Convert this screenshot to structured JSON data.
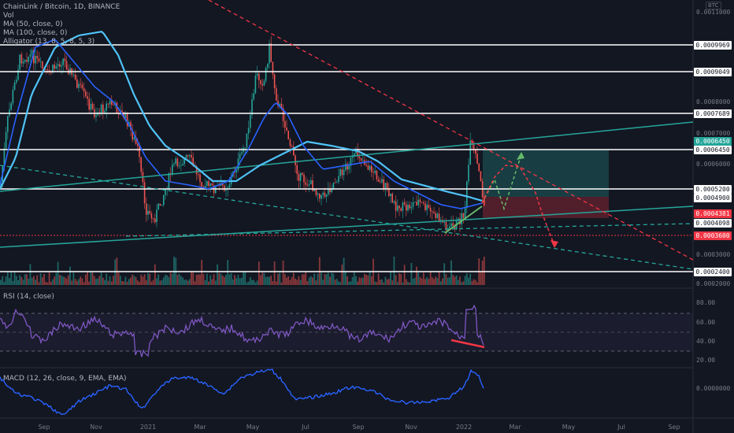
{
  "chart": {
    "title": "ChainLink / Bitcoin, 1D, BINANCE",
    "currency_badge": "BTC",
    "volume_label": "Vol",
    "ma50_label": "MA (50, close, 0)",
    "ma100_label": "MA (100, close, 0)",
    "alligator_label": "Alligator (13, 8, 5, 8, 5, 3)",
    "rsi_label": "RSI (14, close)",
    "macd_label": "MACD (12, 26, close, 9, EMA, EMA)"
  },
  "price_scale": {
    "ticks": [
      "0.0011000",
      "0.0008000",
      "0.0007000",
      "0.0006000",
      "0.0003000",
      "0.0002000"
    ],
    "level_labels": [
      "0.0009969",
      "0.0009049",
      "0.0007689",
      "0.0006450",
      "0.0005200",
      "0.0002400"
    ],
    "marker_labels": [
      {
        "text": "0.0006450",
        "bg": "#26a69a",
        "fg": "#ffffff"
      },
      {
        "text": "0.0004900",
        "bg": "#ffffff",
        "fg": "#131722"
      },
      {
        "text": "0.0004381",
        "bg": "#f23645",
        "fg": "#ffffff"
      },
      {
        "text": "0.0004098",
        "bg": "#ffffff",
        "fg": "#131722"
      },
      {
        "text": "0.0003600",
        "bg": "#f23645",
        "fg": "#ffffff"
      }
    ]
  },
  "rsi_scale": {
    "ticks": [
      "80.00",
      "60.00",
      "40.00",
      "20.00"
    ]
  },
  "macd_scale": {
    "ticks": [
      "0.0000000"
    ]
  },
  "time_axis": {
    "ticks": [
      "Sep",
      "Nov",
      "2021",
      "Mar",
      "May",
      "Jul",
      "Sep",
      "Nov",
      "2022",
      "Mar",
      "May",
      "Jul",
      "Sep"
    ]
  },
  "colors": {
    "background": "#131722",
    "up": "#26a69a",
    "down": "#ef5350",
    "ma50": "#2962ff",
    "ma100": "#4fc3f7",
    "rsi": "#7e57c2",
    "macd": "#2962ff",
    "level": "#ffffff",
    "trend": "#26a69a",
    "resistance": "#f23645"
  }
}
